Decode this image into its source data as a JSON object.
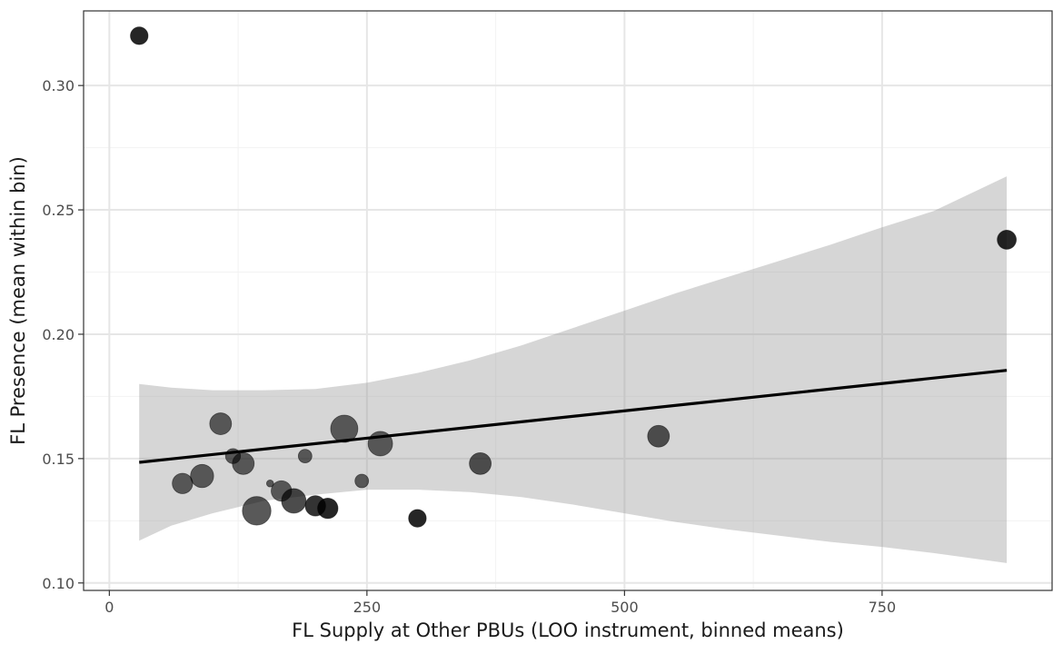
{
  "chart_data": {
    "type": "scatter",
    "title": "",
    "xlabel": "FL Supply at Other PBUs (LOO instrument, binned means)",
    "ylabel": "FL Presence (mean within bin)",
    "xlim": [
      -25,
      915
    ],
    "ylim": [
      0.097,
      0.33
    ],
    "x_ticks": [
      0,
      250,
      500,
      750
    ],
    "x_tick_labels": [
      "0",
      "250",
      "500",
      "750"
    ],
    "y_ticks": [
      0.1,
      0.15,
      0.2,
      0.25,
      0.3
    ],
    "y_tick_labels": [
      "0.10",
      "0.15",
      "0.20",
      "0.25",
      "0.30"
    ],
    "grid": true,
    "theme": "bw",
    "points": [
      {
        "x": 29,
        "y": 0.32,
        "size": 0.45,
        "shade": 0.85
      },
      {
        "x": 71,
        "y": 0.14,
        "size": 0.55,
        "shade": 0.6
      },
      {
        "x": 90,
        "y": 0.143,
        "size": 0.65,
        "shade": 0.6
      },
      {
        "x": 108,
        "y": 0.164,
        "size": 0.6,
        "shade": 0.6
      },
      {
        "x": 120,
        "y": 0.151,
        "size": 0.35,
        "shade": 0.6
      },
      {
        "x": 130,
        "y": 0.148,
        "size": 0.6,
        "shade": 0.6
      },
      {
        "x": 143,
        "y": 0.129,
        "size": 0.85,
        "shade": 0.65
      },
      {
        "x": 156,
        "y": 0.14,
        "size": 0.06,
        "shade": 0.6
      },
      {
        "x": 167,
        "y": 0.137,
        "size": 0.55,
        "shade": 0.6
      },
      {
        "x": 179,
        "y": 0.133,
        "size": 0.7,
        "shade": 0.7
      },
      {
        "x": 190,
        "y": 0.151,
        "size": 0.3,
        "shade": 0.6
      },
      {
        "x": 200,
        "y": 0.131,
        "size": 0.55,
        "shade": 0.8
      },
      {
        "x": 212,
        "y": 0.13,
        "size": 0.55,
        "shade": 0.85
      },
      {
        "x": 228,
        "y": 0.162,
        "size": 0.8,
        "shade": 0.6
      },
      {
        "x": 245,
        "y": 0.141,
        "size": 0.3,
        "shade": 0.6
      },
      {
        "x": 263,
        "y": 0.156,
        "size": 0.7,
        "shade": 0.6
      },
      {
        "x": 299,
        "y": 0.126,
        "size": 0.45,
        "shade": 0.85
      },
      {
        "x": 360,
        "y": 0.148,
        "size": 0.6,
        "shade": 0.65
      },
      {
        "x": 533,
        "y": 0.159,
        "size": 0.6,
        "shade": 0.65
      },
      {
        "x": 871,
        "y": 0.238,
        "size": 0.5,
        "shade": 0.85
      }
    ],
    "fit_line": {
      "x": [
        29,
        871
      ],
      "y": [
        0.1485,
        0.1855
      ]
    },
    "confidence_band": {
      "x": [
        29,
        60,
        100,
        150,
        200,
        250,
        300,
        350,
        400,
        450,
        500,
        550,
        600,
        650,
        700,
        750,
        800,
        871
      ],
      "lower": [
        0.117,
        0.123,
        0.128,
        0.133,
        0.1355,
        0.1375,
        0.1375,
        0.1365,
        0.1345,
        0.1315,
        0.128,
        0.1245,
        0.1215,
        0.119,
        0.1165,
        0.1145,
        0.112,
        0.108
      ],
      "upper": [
        0.18,
        0.1785,
        0.1775,
        0.1775,
        0.178,
        0.1805,
        0.1845,
        0.1895,
        0.1955,
        0.2025,
        0.2095,
        0.2165,
        0.223,
        0.2295,
        0.236,
        0.243,
        0.2495,
        0.2635
      ]
    }
  }
}
